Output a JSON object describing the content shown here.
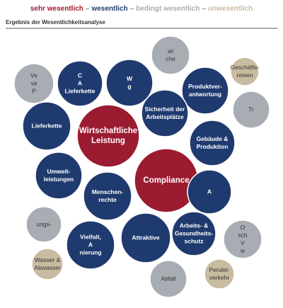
{
  "legend": {
    "separator": "–",
    "items": [
      {
        "label": "sehr wesentlich",
        "color": "#9b1b30"
      },
      {
        "label": "wesentlich",
        "color": "#1f3a6e"
      },
      {
        "label": "bedingt wesentlich",
        "color": "#a7adb3"
      },
      {
        "label": "unwesentlich",
        "color": "#c9bba0"
      }
    ]
  },
  "title": "Ergebnis der Wesentlichkeitsanalyse",
  "nodes": [
    {
      "level": 2,
      "lines": [
        "wi",
        "che"
      ]
    },
    {
      "level": 2,
      "lines": [
        "Ve",
        "ve",
        "P"
      ]
    },
    {
      "level": 1,
      "lines": [
        "C",
        "A",
        "Lieferkette"
      ]
    },
    {
      "level": 1,
      "lines": [
        "W",
        "g"
      ]
    },
    {
      "level": 1,
      "lines": [
        "Produktver-",
        "antwortung"
      ]
    },
    {
      "level": 3,
      "lines": [
        "Geschäfts-",
        "reisen"
      ]
    },
    {
      "level": 2,
      "lines": [
        "Tr"
      ]
    },
    {
      "level": 1,
      "lines": [
        "Lieferkette"
      ]
    },
    {
      "level": 0,
      "lines": [
        "Wirtschaftliche",
        "Leistung"
      ]
    },
    {
      "level": 1,
      "lines": [
        "Sicherheit der",
        "Arbeitsplätze"
      ]
    },
    {
      "level": 1,
      "lines": [
        "Gebäude &",
        "Produktion"
      ]
    },
    {
      "level": 1,
      "lines": [
        "Umwelt-",
        "leistungen"
      ]
    },
    {
      "level": 0,
      "lines": [
        "Compliance"
      ]
    },
    {
      "level": 1,
      "lines": [
        "Menschen-",
        "rechte"
      ]
    },
    {
      "level": 1,
      "lines": [
        "A"
      ]
    },
    {
      "level": 2,
      "lines": [
        "ungs-"
      ]
    },
    {
      "level": 1,
      "lines": [
        "Vielfalt,",
        "A",
        "nierung"
      ]
    },
    {
      "level": 1,
      "lines": [
        "Attraktive"
      ]
    },
    {
      "level": 1,
      "lines": [
        "Arbeits- &",
        "Gesundheits-",
        "schutz"
      ]
    },
    {
      "level": 2,
      "lines": [
        "O",
        "sch",
        "V",
        "w"
      ]
    },
    {
      "level": 3,
      "lines": [
        "Wasser &",
        "Abwasser"
      ]
    },
    {
      "level": 2,
      "lines": [
        "Abfall"
      ]
    },
    {
      "level": 3,
      "lines": [
        "Pendel-",
        "verkehr"
      ]
    }
  ]
}
